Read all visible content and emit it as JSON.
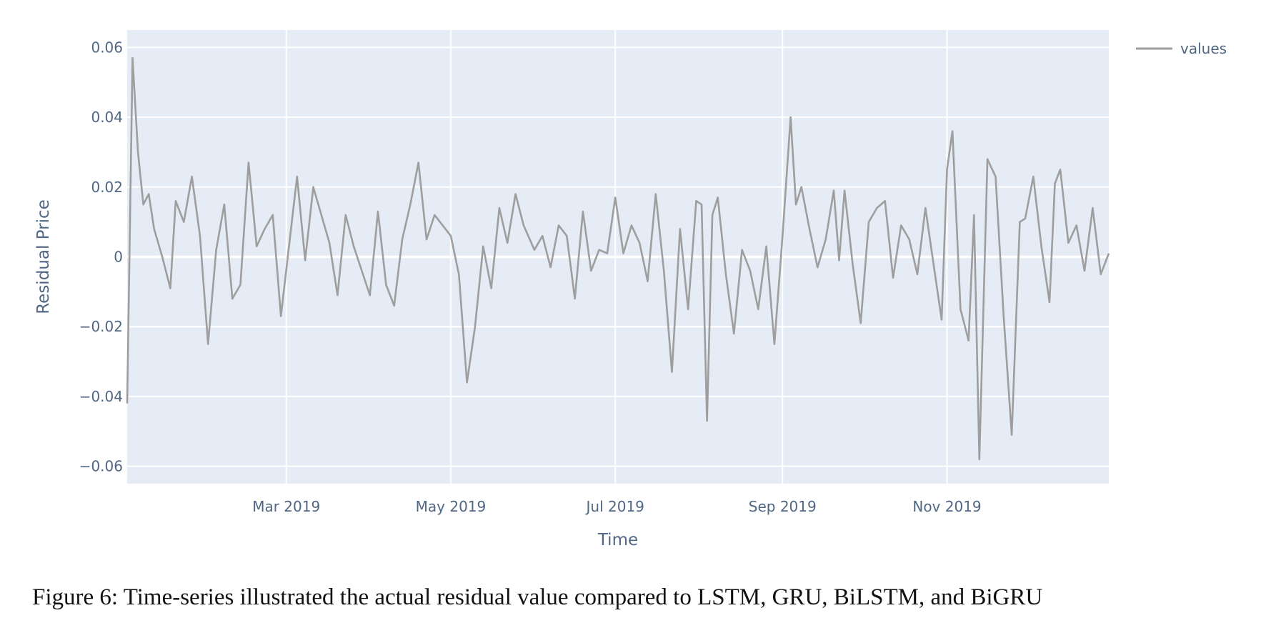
{
  "caption": "Figure 6: Time-series illustrated the actual residual value compared to LSTM, GRU, BiLSTM, and BiGRU",
  "chart_data": {
    "type": "line",
    "xlabel": "Time",
    "ylabel": "Residual Price",
    "x_axis_type": "date",
    "xlim": [
      "2019-01-01",
      "2019-12-31"
    ],
    "ylim": [
      -0.065,
      0.065
    ],
    "x_ticks": [
      {
        "date": "2019-03-01",
        "label": "Mar 2019"
      },
      {
        "date": "2019-05-01",
        "label": "May 2019"
      },
      {
        "date": "2019-07-01",
        "label": "Jul 2019"
      },
      {
        "date": "2019-09-01",
        "label": "Sep 2019"
      },
      {
        "date": "2019-11-01",
        "label": "Nov 2019"
      }
    ],
    "y_ticks": [
      {
        "value": 0.06,
        "label": "0.06"
      },
      {
        "value": 0.04,
        "label": "0.04"
      },
      {
        "value": 0.02,
        "label": "0.02"
      },
      {
        "value": 0,
        "label": "0"
      },
      {
        "value": -0.02,
        "label": "−0.02"
      },
      {
        "value": -0.04,
        "label": "−0.04"
      },
      {
        "value": -0.06,
        "label": "−0.06"
      }
    ],
    "grid": true,
    "plot_background": "#e5ecf6",
    "legend_position": "top-right, outside plot",
    "series": [
      {
        "name": "values",
        "color": "#9e9e9e",
        "dash": "solid",
        "width": 2.6,
        "points": [
          [
            "2019-01-01",
            -0.042
          ],
          [
            "2019-01-03",
            0.057
          ],
          [
            "2019-01-05",
            0.03
          ],
          [
            "2019-01-07",
            0.015
          ],
          [
            "2019-01-09",
            0.018
          ],
          [
            "2019-01-11",
            0.008
          ],
          [
            "2019-01-14",
            0.0
          ],
          [
            "2019-01-17",
            -0.009
          ],
          [
            "2019-01-19",
            0.016
          ],
          [
            "2019-01-22",
            0.01
          ],
          [
            "2019-01-25",
            0.023
          ],
          [
            "2019-01-28",
            0.006
          ],
          [
            "2019-01-31",
            -0.025
          ],
          [
            "2019-02-03",
            0.002
          ],
          [
            "2019-02-06",
            0.015
          ],
          [
            "2019-02-09",
            -0.012
          ],
          [
            "2019-02-12",
            -0.008
          ],
          [
            "2019-02-15",
            0.027
          ],
          [
            "2019-02-18",
            0.003
          ],
          [
            "2019-02-21",
            0.008
          ],
          [
            "2019-02-24",
            0.012
          ],
          [
            "2019-02-27",
            -0.017
          ],
          [
            "2019-03-02",
            0.003
          ],
          [
            "2019-03-05",
            0.023
          ],
          [
            "2019-03-08",
            -0.001
          ],
          [
            "2019-03-11",
            0.02
          ],
          [
            "2019-03-14",
            0.012
          ],
          [
            "2019-03-17",
            0.004
          ],
          [
            "2019-03-20",
            -0.011
          ],
          [
            "2019-03-23",
            0.012
          ],
          [
            "2019-03-26",
            0.003
          ],
          [
            "2019-03-29",
            -0.004
          ],
          [
            "2019-04-01",
            -0.011
          ],
          [
            "2019-04-04",
            0.013
          ],
          [
            "2019-04-07",
            -0.008
          ],
          [
            "2019-04-10",
            -0.014
          ],
          [
            "2019-04-13",
            0.005
          ],
          [
            "2019-04-16",
            0.015
          ],
          [
            "2019-04-19",
            0.027
          ],
          [
            "2019-04-22",
            0.005
          ],
          [
            "2019-04-25",
            0.012
          ],
          [
            "2019-04-28",
            0.009
          ],
          [
            "2019-05-01",
            0.006
          ],
          [
            "2019-05-04",
            -0.005
          ],
          [
            "2019-05-07",
            -0.036
          ],
          [
            "2019-05-10",
            -0.02
          ],
          [
            "2019-05-13",
            0.003
          ],
          [
            "2019-05-16",
            -0.009
          ],
          [
            "2019-05-19",
            0.014
          ],
          [
            "2019-05-22",
            0.004
          ],
          [
            "2019-05-25",
            0.018
          ],
          [
            "2019-05-28",
            0.009
          ],
          [
            "2019-06-01",
            0.002
          ],
          [
            "2019-06-04",
            0.006
          ],
          [
            "2019-06-07",
            -0.003
          ],
          [
            "2019-06-10",
            0.009
          ],
          [
            "2019-06-13",
            0.006
          ],
          [
            "2019-06-16",
            -0.012
          ],
          [
            "2019-06-19",
            0.013
          ],
          [
            "2019-06-22",
            -0.004
          ],
          [
            "2019-06-25",
            0.002
          ],
          [
            "2019-06-28",
            0.001
          ],
          [
            "2019-07-01",
            0.017
          ],
          [
            "2019-07-04",
            0.001
          ],
          [
            "2019-07-07",
            0.009
          ],
          [
            "2019-07-10",
            0.004
          ],
          [
            "2019-07-13",
            -0.007
          ],
          [
            "2019-07-16",
            0.018
          ],
          [
            "2019-07-19",
            -0.004
          ],
          [
            "2019-07-22",
            -0.033
          ],
          [
            "2019-07-25",
            0.008
          ],
          [
            "2019-07-28",
            -0.015
          ],
          [
            "2019-07-31",
            0.016
          ],
          [
            "2019-08-02",
            0.015
          ],
          [
            "2019-08-04",
            -0.047
          ],
          [
            "2019-08-06",
            0.012
          ],
          [
            "2019-08-08",
            0.017
          ],
          [
            "2019-08-11",
            -0.005
          ],
          [
            "2019-08-14",
            -0.022
          ],
          [
            "2019-08-17",
            0.002
          ],
          [
            "2019-08-20",
            -0.004
          ],
          [
            "2019-08-23",
            -0.015
          ],
          [
            "2019-08-26",
            0.003
          ],
          [
            "2019-08-29",
            -0.025
          ],
          [
            "2019-09-01",
            0.006
          ],
          [
            "2019-09-04",
            0.04
          ],
          [
            "2019-09-06",
            0.015
          ],
          [
            "2019-09-08",
            0.02
          ],
          [
            "2019-09-11",
            0.008
          ],
          [
            "2019-09-14",
            -0.003
          ],
          [
            "2019-09-17",
            0.005
          ],
          [
            "2019-09-20",
            0.019
          ],
          [
            "2019-09-22",
            -0.001
          ],
          [
            "2019-09-24",
            0.019
          ],
          [
            "2019-09-27",
            -0.002
          ],
          [
            "2019-09-30",
            -0.019
          ],
          [
            "2019-10-03",
            0.01
          ],
          [
            "2019-10-06",
            0.014
          ],
          [
            "2019-10-09",
            0.016
          ],
          [
            "2019-10-12",
            -0.006
          ],
          [
            "2019-10-15",
            0.009
          ],
          [
            "2019-10-18",
            0.005
          ],
          [
            "2019-10-21",
            -0.005
          ],
          [
            "2019-10-24",
            0.014
          ],
          [
            "2019-10-27",
            -0.002
          ],
          [
            "2019-10-30",
            -0.018
          ],
          [
            "2019-11-01",
            0.025
          ],
          [
            "2019-11-03",
            0.036
          ],
          [
            "2019-11-06",
            -0.015
          ],
          [
            "2019-11-09",
            -0.024
          ],
          [
            "2019-11-11",
            0.012
          ],
          [
            "2019-11-13",
            -0.058
          ],
          [
            "2019-11-16",
            0.028
          ],
          [
            "2019-11-19",
            0.023
          ],
          [
            "2019-11-22",
            -0.017
          ],
          [
            "2019-11-25",
            -0.051
          ],
          [
            "2019-11-28",
            0.01
          ],
          [
            "2019-11-30",
            0.011
          ],
          [
            "2019-12-03",
            0.023
          ],
          [
            "2019-12-06",
            0.003
          ],
          [
            "2019-12-09",
            -0.013
          ],
          [
            "2019-12-11",
            0.021
          ],
          [
            "2019-12-13",
            0.025
          ],
          [
            "2019-12-16",
            0.004
          ],
          [
            "2019-12-19",
            0.009
          ],
          [
            "2019-12-22",
            -0.004
          ],
          [
            "2019-12-25",
            0.014
          ],
          [
            "2019-12-28",
            -0.005
          ],
          [
            "2019-12-31",
            0.001
          ]
        ]
      }
    ]
  }
}
